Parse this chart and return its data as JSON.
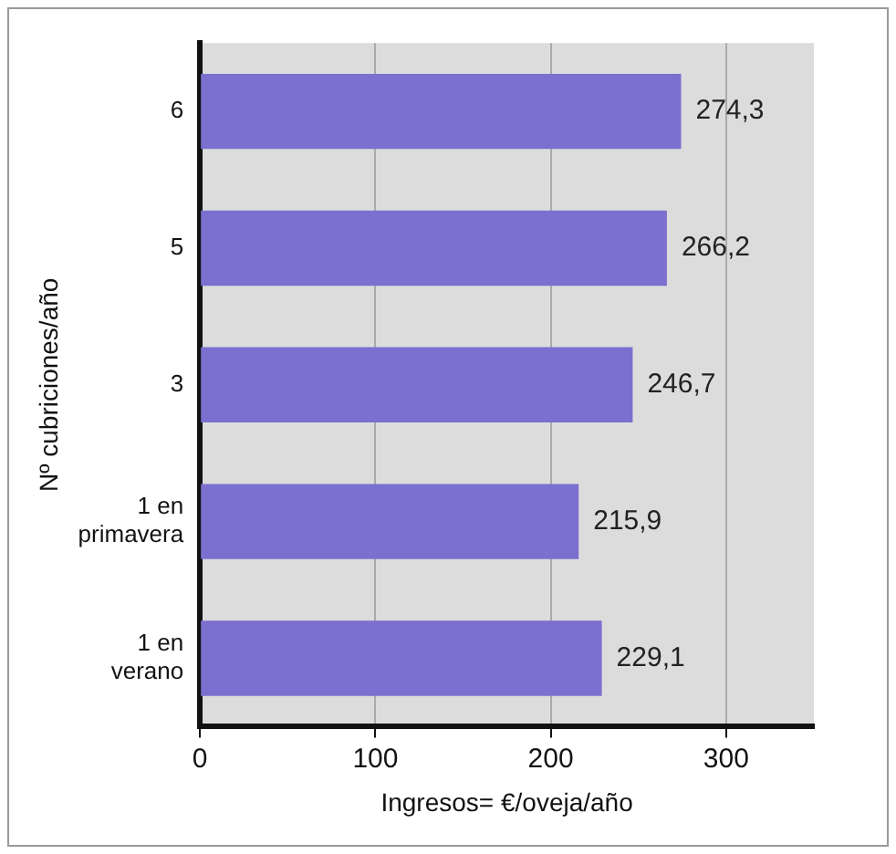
{
  "chart_data": {
    "type": "bar",
    "orientation": "horizontal",
    "xlabel": "Ingresos= €/oveja/año",
    "ylabel": "Nº cubriciones/año",
    "categories": [
      "6",
      "5",
      "3",
      "1 en primavera",
      "1 en verano"
    ],
    "values": [
      274.3,
      266.2,
      246.7,
      215.9,
      229.1
    ],
    "value_labels": [
      "274,3",
      "266,2",
      "246,7",
      "215,9",
      "229,1"
    ],
    "color": "#7b6fcf",
    "xlim": [
      0,
      350
    ],
    "xticks": [
      0,
      100,
      200,
      300
    ],
    "grid": "x"
  }
}
